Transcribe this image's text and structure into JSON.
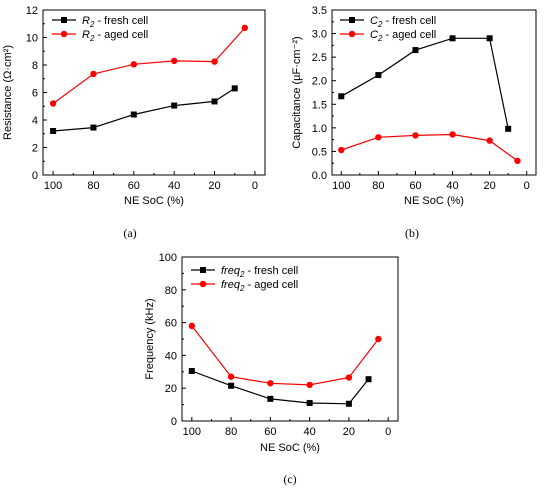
{
  "chart_data": [
    {
      "type": "line",
      "panel_label": "(a)",
      "xlabel": "NE SoC (%)",
      "ylabel": "Resistance (Ω·cm²)",
      "xlim": [
        105,
        -5
      ],
      "ylim": [
        0,
        12
      ],
      "xticks": [
        "100",
        "80",
        "60",
        "40",
        "20",
        "0"
      ],
      "yticks": [
        "0",
        "2",
        "4",
        "6",
        "8",
        "10",
        "12"
      ],
      "legend_position": "top-left",
      "series": [
        {
          "name": "R2 - fresh cell",
          "legend_symbol": "R",
          "legend_sub": "2",
          "legend_rest": " - fresh cell",
          "color": "#000000",
          "marker": "square",
          "x": [
            100,
            80,
            60,
            40,
            20,
            10
          ],
          "values": [
            3.2,
            3.45,
            4.4,
            5.05,
            5.35,
            6.3
          ]
        },
        {
          "name": "R2 - aged cell",
          "legend_symbol": "R",
          "legend_sub": "2",
          "legend_rest": " - aged cell",
          "color": "#ff0000",
          "marker": "circle",
          "x": [
            100,
            80,
            60,
            40,
            20,
            5
          ],
          "values": [
            5.2,
            7.35,
            8.05,
            8.3,
            8.25,
            10.7
          ]
        }
      ]
    },
    {
      "type": "line",
      "panel_label": "(b)",
      "xlabel": "NE SoC (%)",
      "ylabel": "Capacitance (µF·cm⁻²)",
      "xlim": [
        105,
        -5
      ],
      "ylim": [
        0,
        3.5
      ],
      "xticks": [
        "100",
        "80",
        "60",
        "40",
        "20",
        "0"
      ],
      "yticks": [
        "0.0",
        "0.5",
        "1.0",
        "1.5",
        "2.0",
        "2.5",
        "3.0",
        "3.5"
      ],
      "legend_position": "top-left",
      "series": [
        {
          "name": "C2 - fresh cell",
          "legend_symbol": "C",
          "legend_sub": "2",
          "legend_rest": " - fresh cell",
          "color": "#000000",
          "marker": "square",
          "x": [
            100,
            80,
            60,
            40,
            20,
            10
          ],
          "values": [
            1.67,
            2.12,
            2.65,
            2.9,
            2.9,
            0.98
          ]
        },
        {
          "name": "C2 - aged cell",
          "legend_symbol": "C",
          "legend_sub": "2",
          "legend_rest": " - aged cell",
          "color": "#ff0000",
          "marker": "circle",
          "x": [
            100,
            80,
            60,
            40,
            20,
            5
          ],
          "values": [
            0.53,
            0.8,
            0.84,
            0.86,
            0.73,
            0.3
          ]
        }
      ]
    },
    {
      "type": "line",
      "panel_label": "(c)",
      "xlabel": "NE SoC (%)",
      "ylabel": "Frequency (kHz)",
      "xlim": [
        105,
        -5
      ],
      "ylim": [
        0,
        100
      ],
      "xticks": [
        "100",
        "80",
        "60",
        "40",
        "20",
        "0"
      ],
      "yticks": [
        "0",
        "20",
        "40",
        "60",
        "80",
        "100"
      ],
      "legend_position": "top-left",
      "series": [
        {
          "name": "freq2 - fresh cell",
          "legend_symbol": "freq",
          "legend_sub": "2",
          "legend_rest": " - fresh cell",
          "color": "#000000",
          "marker": "square",
          "x": [
            100,
            80,
            60,
            40,
            20,
            10
          ],
          "values": [
            30.5,
            21.5,
            13.5,
            11,
            10.5,
            25.5
          ]
        },
        {
          "name": "freq2 - aged cell",
          "legend_symbol": "freq",
          "legend_sub": "2",
          "legend_rest": " - aged cell",
          "color": "#ff0000",
          "marker": "circle",
          "x": [
            100,
            80,
            60,
            40,
            20,
            5
          ],
          "values": [
            58,
            27,
            23,
            22,
            26.5,
            50
          ]
        }
      ]
    }
  ]
}
